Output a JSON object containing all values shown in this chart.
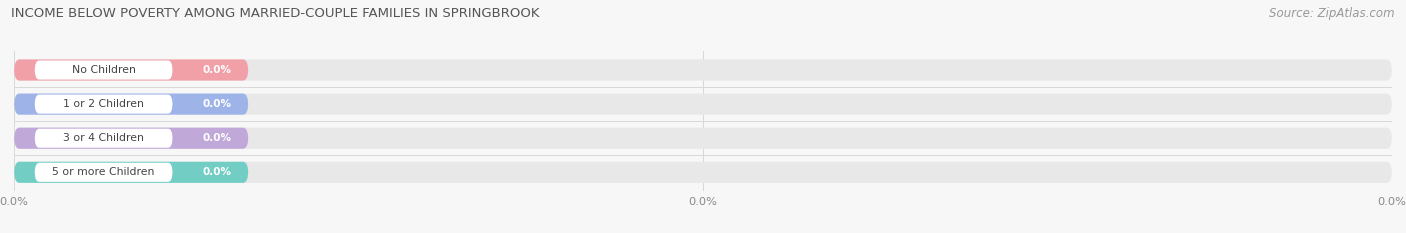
{
  "title": "INCOME BELOW POVERTY AMONG MARRIED-COUPLE FAMILIES IN SPRINGBROOK",
  "source": "Source: ZipAtlas.com",
  "categories": [
    "No Children",
    "1 or 2 Children",
    "3 or 4 Children",
    "5 or more Children"
  ],
  "values": [
    0.0,
    0.0,
    0.0,
    0.0
  ],
  "bar_colors": [
    "#f2a0a8",
    "#9eb4e8",
    "#c0a8d8",
    "#72cec4"
  ],
  "bg_color": "#f7f7f7",
  "bar_bg_color": "#e8e8e8",
  "title_fontsize": 9.5,
  "source_fontsize": 8.5,
  "tick_label_color": "#888888",
  "title_color": "#555555",
  "grid_color": "#d8d8d8"
}
